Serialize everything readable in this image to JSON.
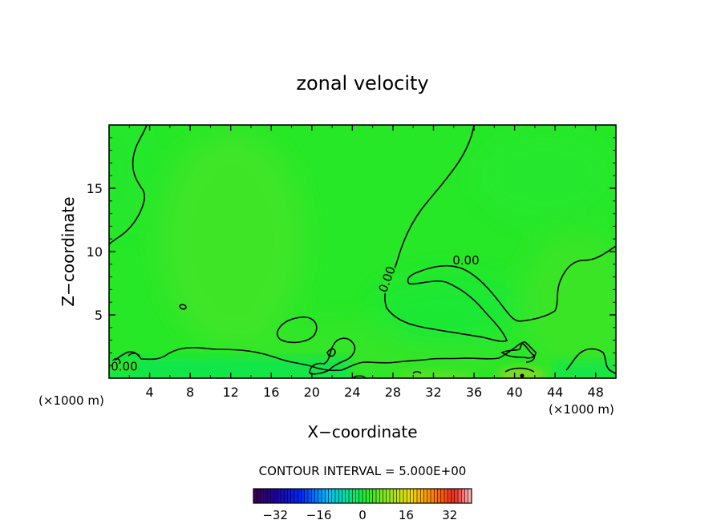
{
  "chart_data": {
    "type": "heatmap",
    "title": "zonal velocity",
    "xlabel": "X−coordinate",
    "ylabel": "Z−coordinate",
    "x_unit_left": "(×1000 m)",
    "x_unit_right": "(×1000 m)",
    "xlim": [
      0,
      50
    ],
    "ylim": [
      0,
      20
    ],
    "x_ticks": [
      4,
      8,
      12,
      16,
      20,
      24,
      28,
      32,
      36,
      40,
      44,
      48
    ],
    "x_tick_labels": [
      "4",
      "8",
      "12",
      "16",
      "20",
      "24",
      "28",
      "32",
      "36",
      "40",
      "44",
      "48"
    ],
    "y_ticks": [
      5,
      10,
      15
    ],
    "y_tick_labels": [
      "5",
      "10",
      "15"
    ],
    "contour_interval_text": "CONTOUR INTERVAL = 5.000E+00",
    "contour_levels": [
      0
    ],
    "contour_labels": [
      {
        "text": "0.00",
        "x": 1.5,
        "y": 0.6,
        "rotate": 0
      },
      {
        "text": "0.00",
        "x": 35.2,
        "y": 9.0,
        "rotate": 0
      },
      {
        "text": "0.00",
        "x": 27.8,
        "y": 7.7,
        "rotate": -70
      }
    ],
    "colorbar": {
      "range": [
        -40,
        40
      ],
      "tick_values": [
        -32,
        -16,
        0,
        16,
        32
      ],
      "tick_labels": [
        "−32",
        "−16",
        "0",
        "16",
        "32"
      ],
      "segments": 64
    },
    "grid": false
  }
}
